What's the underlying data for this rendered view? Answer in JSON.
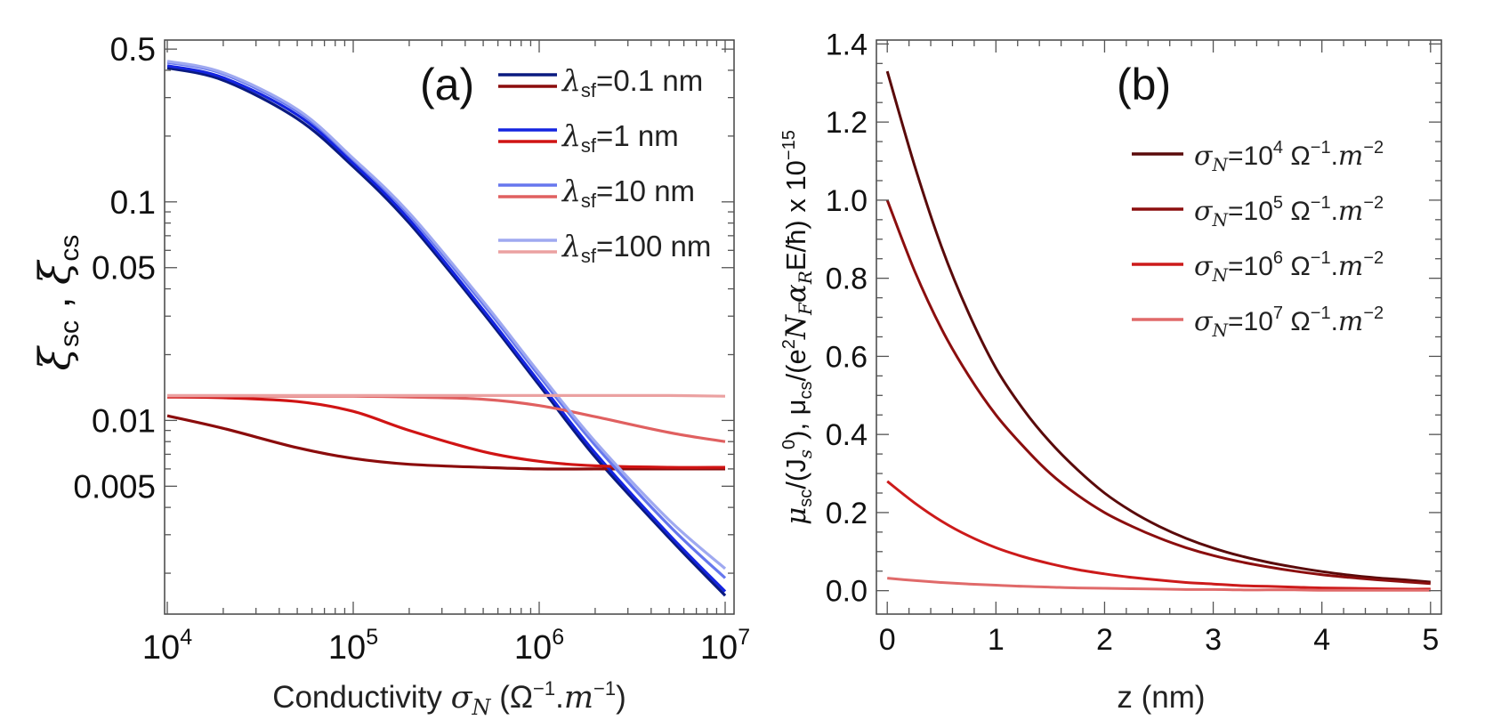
{
  "figure": {
    "background": "#ffffff"
  },
  "chart_data": [
    {
      "type": "line",
      "panel_label": "(a)",
      "title": "",
      "xscale": "log",
      "yscale": "log",
      "xlim": [
        10000,
        10000000
      ],
      "ylim": [
        0.0013,
        0.55
      ],
      "xlabel": {
        "text": "Conductivity ",
        "sym": "σ",
        "sub": "N",
        "tail": " (Ω",
        "sup": "−1",
        "tail2": ".",
        "unit": "m",
        "sup2": "−1",
        "close": ")"
      },
      "ylabel": {
        "sym1": "ξ",
        "sub1": "sc",
        "sep": " , ",
        "sym2": "ξ",
        "sub2": "cs"
      },
      "xticks": [
        {
          "value": 10000,
          "base": "10",
          "exp": "4"
        },
        {
          "value": 100000,
          "base": "10",
          "exp": "5"
        },
        {
          "value": 1000000,
          "base": "10",
          "exp": "6"
        },
        {
          "value": 10000000,
          "base": "10",
          "exp": "7"
        }
      ],
      "yticks": [
        {
          "value": 0.5,
          "label": "0.5"
        },
        {
          "value": 0.1,
          "label": "0.1"
        },
        {
          "value": 0.05,
          "label": "0.05"
        },
        {
          "value": 0.01,
          "label": "0.01"
        },
        {
          "value": 0.005,
          "label": "0.005"
        }
      ],
      "x": [
        10000,
        20000,
        50000,
        100000,
        200000,
        500000,
        1000000,
        2000000,
        5000000,
        10000000
      ],
      "series": [
        {
          "name": "ξsc, λsf=0.1 nm",
          "color": "#0a1a80",
          "values": [
            0.41,
            0.36,
            0.24,
            0.145,
            0.08,
            0.031,
            0.0145,
            0.0068,
            0.0029,
            0.00158
          ]
        },
        {
          "name": "ξcs, λsf=0.1 nm",
          "color": "#8b0c0c",
          "values": [
            0.0105,
            0.0092,
            0.0075,
            0.0067,
            0.0063,
            0.0061,
            0.006,
            0.006,
            0.006,
            0.006
          ]
        },
        {
          "name": "ξsc, λsf=1 nm",
          "color": "#1424e0",
          "values": [
            0.42,
            0.37,
            0.25,
            0.15,
            0.083,
            0.032,
            0.015,
            0.0071,
            0.003,
            0.00165
          ]
        },
        {
          "name": "ξcs, λsf=1 nm",
          "color": "#d01414",
          "values": [
            0.0128,
            0.0127,
            0.0122,
            0.011,
            0.009,
            0.0072,
            0.0065,
            0.0062,
            0.0061,
            0.0061
          ]
        },
        {
          "name": "ξsc, λsf=10 nm",
          "color": "#6677ee",
          "values": [
            0.435,
            0.385,
            0.26,
            0.156,
            0.087,
            0.034,
            0.016,
            0.0077,
            0.0033,
            0.0019
          ]
        },
        {
          "name": "ξcs, λsf=10 nm",
          "color": "#e06060",
          "values": [
            0.0129,
            0.0129,
            0.0129,
            0.0129,
            0.0128,
            0.0125,
            0.0117,
            0.0104,
            0.0088,
            0.008
          ]
        },
        {
          "name": "ξsc, λsf=100 nm",
          "color": "#9fa9f0",
          "values": [
            0.44,
            0.39,
            0.265,
            0.158,
            0.089,
            0.035,
            0.0165,
            0.008,
            0.0035,
            0.0021
          ]
        },
        {
          "name": "ξcs, λsf=100 nm",
          "color": "#eba1a1",
          "values": [
            0.013,
            0.013,
            0.013,
            0.013,
            0.013,
            0.013,
            0.013,
            0.013,
            0.013,
            0.0129
          ]
        }
      ],
      "legend": {
        "position": "top-right",
        "entries": [
          {
            "sym": "λ",
            "sub": "sf",
            "text": "=0.1 nm",
            "colors": [
              "#0a1a80",
              "#8b0c0c"
            ]
          },
          {
            "sym": "λ",
            "sub": "sf",
            "text": "=1 nm",
            "colors": [
              "#1424e0",
              "#d01414"
            ]
          },
          {
            "sym": "λ",
            "sub": "sf",
            "text": "=10 nm",
            "colors": [
              "#6677ee",
              "#e06060"
            ]
          },
          {
            "sym": "λ",
            "sub": "sf",
            "text": "=100 nm",
            "colors": [
              "#9fa9f0",
              "#eba1a1"
            ]
          }
        ]
      }
    },
    {
      "type": "line",
      "panel_label": "(b)",
      "title": "",
      "xlim": [
        -0.1,
        5.1
      ],
      "ylim": [
        -0.06,
        1.41
      ],
      "xlabel": {
        "text": "z (nm)"
      },
      "ylabel": {
        "t1": "μ",
        "s1": "sc",
        "t2": "/(J",
        "s2": "s",
        "sup2": "0",
        "t3": "), μ",
        "s3": "cs",
        "t4": "/(e",
        "sup4": "2",
        "t5": "N",
        "s5": "F",
        "t6": "α",
        "s6": "R",
        "t7": "E/ħ) x 10",
        "sup7": "−15"
      },
      "xticks": [
        {
          "value": 0,
          "label": "0"
        },
        {
          "value": 1,
          "label": "1"
        },
        {
          "value": 2,
          "label": "2"
        },
        {
          "value": 3,
          "label": "3"
        },
        {
          "value": 4,
          "label": "4"
        },
        {
          "value": 5,
          "label": "5"
        }
      ],
      "yticks": [
        {
          "value": 0.0,
          "label": "0.0"
        },
        {
          "value": 0.2,
          "label": "0.2"
        },
        {
          "value": 0.4,
          "label": "0.4"
        },
        {
          "value": 0.6,
          "label": "0.6"
        },
        {
          "value": 0.8,
          "label": "0.8"
        },
        {
          "value": 1.0,
          "label": "1.0"
        },
        {
          "value": 1.2,
          "label": "1.2"
        },
        {
          "value": 1.4,
          "label": "1.4"
        }
      ],
      "x": [
        0,
        0.25,
        0.5,
        0.75,
        1,
        1.25,
        1.5,
        1.75,
        2,
        2.25,
        2.5,
        2.75,
        3,
        3.25,
        3.5,
        3.75,
        4,
        4.25,
        4.5,
        4.75,
        5
      ],
      "series": [
        {
          "name": "σN=10^4",
          "color": "#5a0a0a",
          "values": [
            1.33,
            1.09,
            0.88,
            0.71,
            0.57,
            0.465,
            0.38,
            0.31,
            0.25,
            0.203,
            0.165,
            0.134,
            0.109,
            0.089,
            0.073,
            0.06,
            0.049,
            0.04,
            0.033,
            0.028,
            0.022
          ]
        },
        {
          "name": "σN=10^5",
          "color": "#8b0e0e",
          "values": [
            1.0,
            0.82,
            0.67,
            0.55,
            0.45,
            0.37,
            0.3,
            0.245,
            0.2,
            0.165,
            0.135,
            0.11,
            0.09,
            0.074,
            0.061,
            0.05,
            0.041,
            0.034,
            0.028,
            0.023,
            0.018
          ]
        },
        {
          "name": "σN=10^6",
          "color": "#cc1a1a",
          "values": [
            0.28,
            0.225,
            0.178,
            0.14,
            0.11,
            0.087,
            0.069,
            0.054,
            0.043,
            0.034,
            0.027,
            0.021,
            0.017,
            0.013,
            0.011,
            0.009,
            0.007,
            0.006,
            0.005,
            0.004,
            0.004
          ]
        },
        {
          "name": "σN=10^7",
          "color": "#e06a6a",
          "values": [
            0.032,
            0.026,
            0.021,
            0.017,
            0.014,
            0.011,
            0.009,
            0.007,
            0.006,
            0.005,
            0.004,
            0.003,
            0.003,
            0.002,
            0.002,
            0.002,
            0.001,
            0.001,
            0.001,
            0.001,
            0.001
          ]
        }
      ],
      "legend": {
        "position": "top-right",
        "entries": [
          {
            "sym": "σ",
            "sub": "N",
            "t": "=10",
            "sup": "4",
            "t2": " Ω",
            "sup2": "−1",
            "t3": ".",
            "unit": "m",
            "sup3": "−2",
            "color": "#5a0a0a"
          },
          {
            "sym": "σ",
            "sub": "N",
            "t": "=10",
            "sup": "5",
            "t2": " Ω",
            "sup2": "−1",
            "t3": ".",
            "unit": "m",
            "sup3": "−2",
            "color": "#8b0e0e"
          },
          {
            "sym": "σ",
            "sub": "N",
            "t": "=10",
            "sup": "6",
            "t2": " Ω",
            "sup2": "−1",
            "t3": ".",
            "unit": "m",
            "sup3": "−2",
            "color": "#cc1a1a"
          },
          {
            "sym": "σ",
            "sub": "N",
            "t": "=10",
            "sup": "7",
            "t2": " Ω",
            "sup2": "−1",
            "t3": ".",
            "unit": "m",
            "sup3": "−2",
            "color": "#e06a6a"
          }
        ]
      }
    }
  ]
}
